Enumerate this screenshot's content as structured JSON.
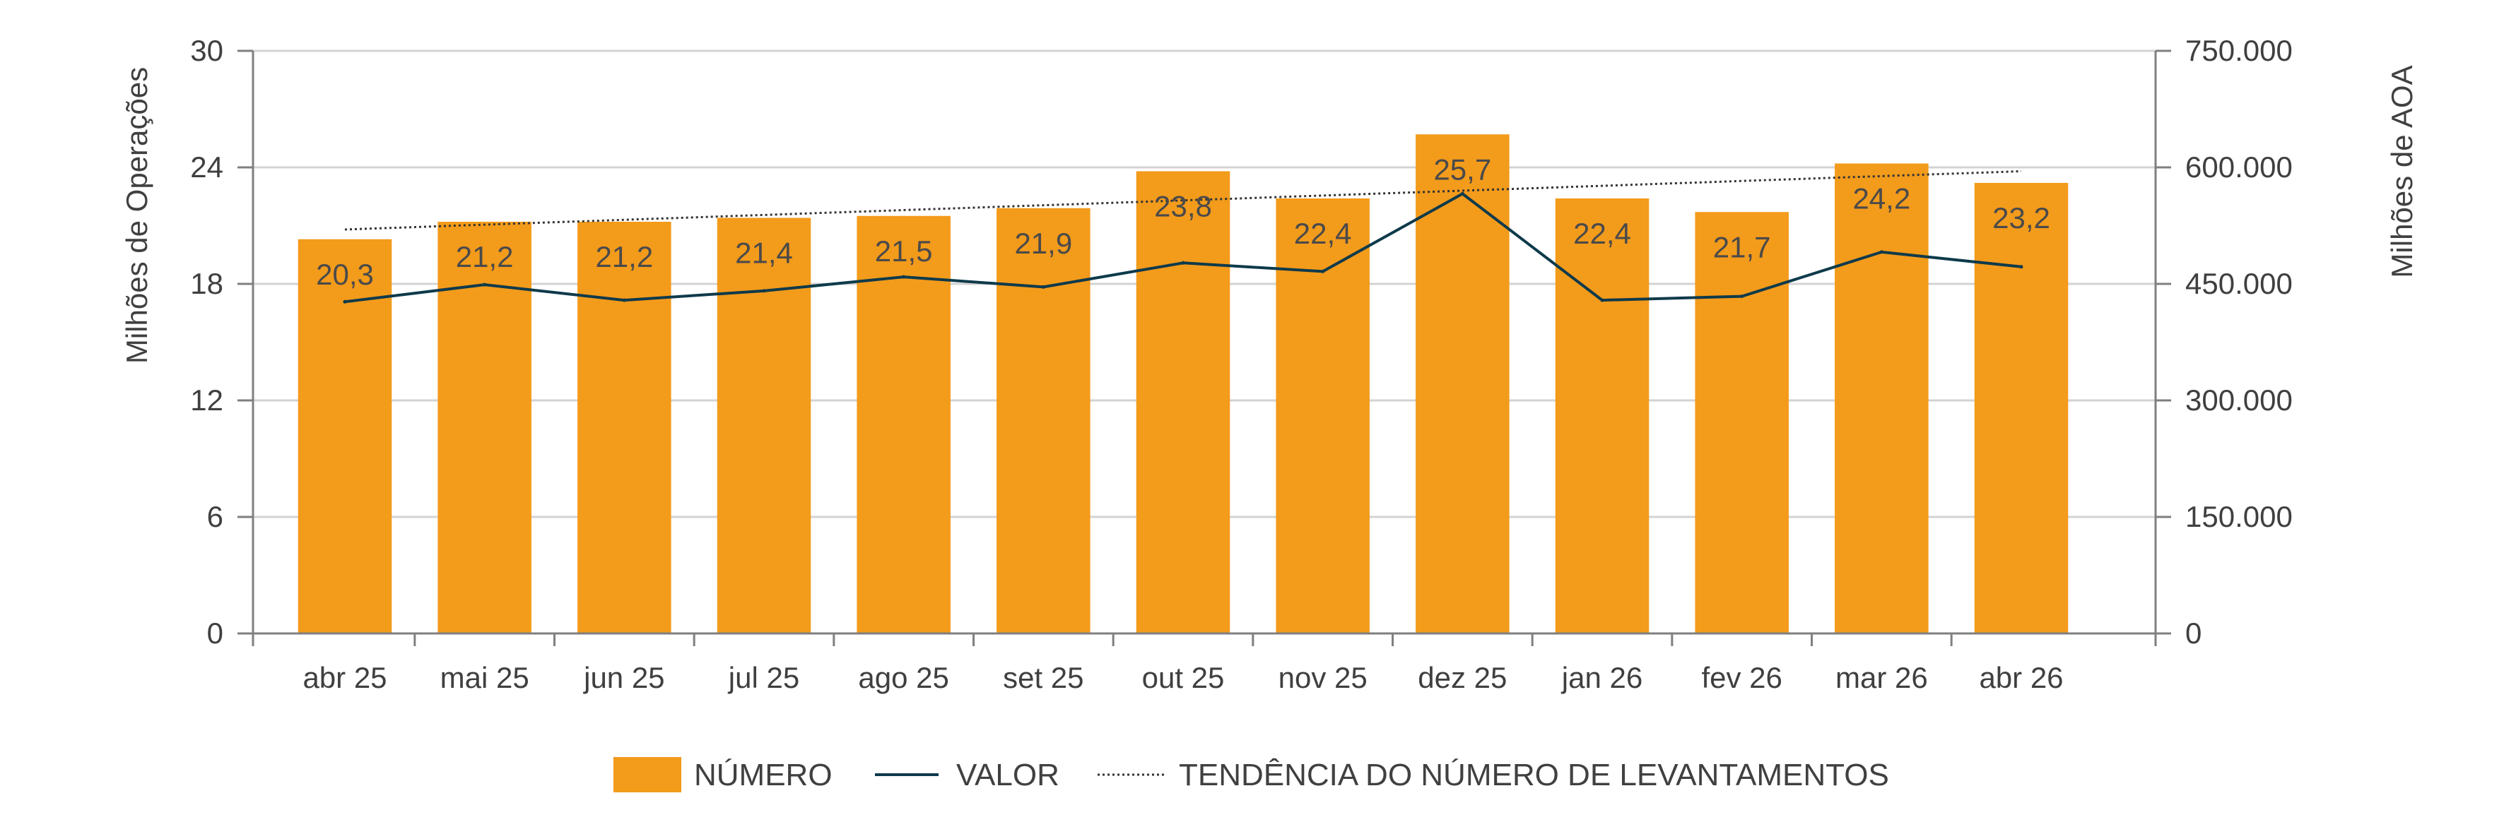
{
  "colors": {
    "bar": "#F39B1B",
    "line": "#0E3A4B",
    "trend": "#333333",
    "grid": "#D3D3D3",
    "axis": "#7F7F7F"
  },
  "chart_data": {
    "type": "bar",
    "categories": [
      "abr 25",
      "mai 25",
      "jun 25",
      "jul 25",
      "ago 25",
      "set 25",
      "out 25",
      "nov 25",
      "dez 25",
      "jan 26",
      "fev 26",
      "mar 26",
      "abr 26"
    ],
    "series": [
      {
        "name": "NÚMERO",
        "type": "bar",
        "axis": "left",
        "values": [
          20.3,
          21.2,
          21.2,
          21.4,
          21.5,
          21.9,
          23.8,
          22.4,
          25.7,
          22.4,
          21.7,
          24.2,
          23.2
        ],
        "data_labels": [
          "20,3",
          "21,2",
          "21,2",
          "21,4",
          "21,5",
          "21,9",
          "23,8",
          "22,4",
          "25,7",
          "22,4",
          "21,7",
          "24,2",
          "23,2"
        ]
      },
      {
        "name": "VALOR",
        "type": "line",
        "axis": "right",
        "values": [
          427000,
          449000,
          429000,
          441000,
          459000,
          446000,
          477000,
          466000,
          566000,
          429000,
          434000,
          491000,
          472000
        ]
      },
      {
        "name": "TENDÊNCIA DO NÚMERO DE LEVANTAMENTOS",
        "type": "trendline",
        "axis": "left",
        "values": [
          20.8,
          21.05,
          21.3,
          21.55,
          21.8,
          22.05,
          22.3,
          22.55,
          22.8,
          23.05,
          23.3,
          23.55,
          23.8
        ]
      }
    ],
    "left_axis": {
      "title": "Milhões de Operações",
      "range": [
        0,
        30
      ],
      "ticks": [
        0,
        6,
        12,
        18,
        24,
        30
      ],
      "tick_labels": [
        "0",
        "6",
        "12",
        "18",
        "24",
        "30"
      ]
    },
    "right_axis": {
      "title": "Milhões de AOA",
      "range": [
        0,
        750000
      ],
      "ticks": [
        0,
        150000,
        300000,
        450000,
        600000,
        750000
      ],
      "tick_labels": [
        "0",
        "150.000",
        "300.000",
        "450.000",
        "600.000",
        "750.000"
      ]
    },
    "grid": true,
    "legend_position": "bottom-center"
  }
}
